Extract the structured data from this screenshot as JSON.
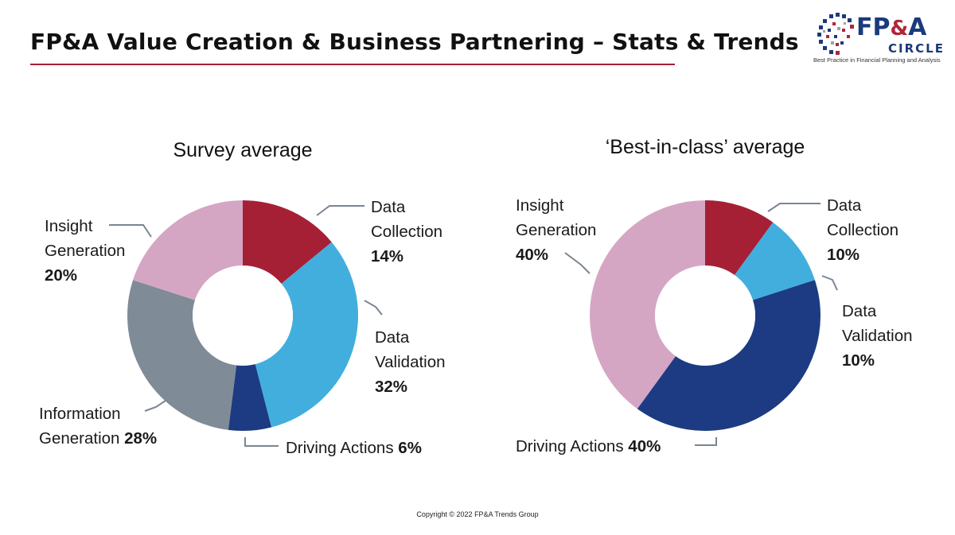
{
  "slide_title": "FP&A Value Creation & Business Partnering – Stats & Trends",
  "logo": {
    "name_part1": "FP",
    "name_amp": "&",
    "name_part2": "A",
    "name_bottom": "CIRCLE",
    "tagline": "Best Practice in Financial Planning and Analysis",
    "colors": {
      "navy": "#1a3a7c",
      "red": "#b0253a"
    }
  },
  "copyright": "Copyright © 2022 FP&A Trends Group",
  "chart_data": [
    {
      "type": "pie",
      "donut": true,
      "title": "Survey average",
      "slices": [
        {
          "label": [
            "Data",
            "Collection"
          ],
          "pct_text": "14%",
          "value": 14,
          "color": "#a52035"
        },
        {
          "label": [
            "Data",
            "Validation"
          ],
          "pct_text": "32%",
          "value": 32,
          "color": "#42aede"
        },
        {
          "label": [
            "Driving Actions"
          ],
          "pct_text": "6%",
          "value": 6,
          "color": "#1d3b82"
        },
        {
          "label": [
            "Information",
            "Generation"
          ],
          "pct_text": "28%",
          "value": 28,
          "color": "#7f8b97"
        },
        {
          "label": [
            "Insight",
            "Generation"
          ],
          "pct_text": "20%",
          "value": 20,
          "color": "#d5a6c4"
        }
      ]
    },
    {
      "type": "pie",
      "donut": true,
      "title": "‘Best-in-class’ average",
      "slices": [
        {
          "label": [
            "Data",
            "Collection"
          ],
          "pct_text": "10%",
          "value": 10,
          "color": "#a52035"
        },
        {
          "label": [
            "Data",
            "Validation"
          ],
          "pct_text": "10%",
          "value": 10,
          "color": "#42aede"
        },
        {
          "label": [
            "Driving Actions"
          ],
          "pct_text": "40%",
          "value": 40,
          "color": "#1d3b82"
        },
        {
          "label": [
            "Insight",
            "Generation"
          ],
          "pct_text": "40%",
          "value": 40,
          "color": "#d5a6c4"
        }
      ]
    }
  ]
}
